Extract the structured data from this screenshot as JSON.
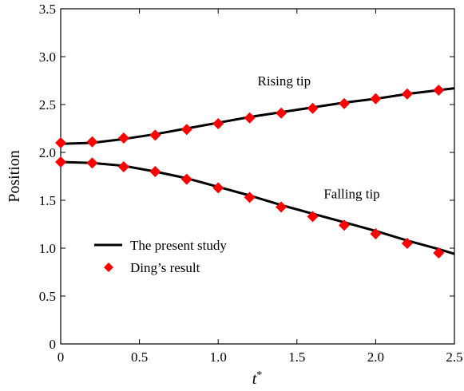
{
  "chart_data": {
    "type": "line",
    "xlabel": "t*",
    "ylabel": "Position",
    "xlim": [
      0,
      2.5
    ],
    "ylim": [
      0,
      3.5
    ],
    "xticks": [
      0,
      0.5,
      1.0,
      1.5,
      2.0,
      2.5
    ],
    "xtick_labels": [
      "0",
      "0.5",
      "1.0",
      "1.5",
      "2.0",
      "2.5"
    ],
    "yticks": [
      0,
      0.5,
      1.0,
      1.5,
      2.0,
      2.5,
      3.0,
      3.5
    ],
    "ytick_labels": [
      "0",
      "0.5",
      "1.0",
      "1.5",
      "2.0",
      "2.5",
      "3.0",
      "3.5"
    ],
    "grid": false,
    "legend_position": "lower-left",
    "legend": [
      {
        "label": "The present study",
        "marker": "line",
        "color": "#000000"
      },
      {
        "label": "Ding’s result",
        "marker": "diamond",
        "color": "#ff0000"
      }
    ],
    "annotations": [
      {
        "text": "Rising tip",
        "x": 1.25,
        "y": 2.7
      },
      {
        "text": "Falling tip",
        "x": 1.67,
        "y": 1.52
      }
    ],
    "series": [
      {
        "style": "line",
        "color": "#000000",
        "x": [
          0,
          0.2,
          0.4,
          0.6,
          0.8,
          1.0,
          1.2,
          1.4,
          1.6,
          1.8,
          2.0,
          2.2,
          2.4,
          2.5
        ],
        "y": [
          2.09,
          2.1,
          2.14,
          2.19,
          2.25,
          2.31,
          2.37,
          2.42,
          2.47,
          2.52,
          2.56,
          2.61,
          2.65,
          2.67
        ]
      },
      {
        "style": "line",
        "color": "#000000",
        "x": [
          0,
          0.2,
          0.4,
          0.6,
          0.8,
          1.0,
          1.2,
          1.4,
          1.6,
          1.8,
          2.0,
          2.2,
          2.4,
          2.5
        ],
        "y": [
          1.9,
          1.89,
          1.86,
          1.8,
          1.73,
          1.64,
          1.55,
          1.45,
          1.36,
          1.27,
          1.18,
          1.08,
          0.99,
          0.94
        ]
      },
      {
        "style": "marker",
        "color": "#ff0000",
        "x": [
          0,
          0.2,
          0.4,
          0.6,
          0.8,
          1.0,
          1.2,
          1.4,
          1.6,
          1.8,
          2.0,
          2.2,
          2.4
        ],
        "y": [
          2.1,
          2.11,
          2.15,
          2.18,
          2.24,
          2.3,
          2.36,
          2.41,
          2.46,
          2.51,
          2.56,
          2.61,
          2.65
        ]
      },
      {
        "style": "marker",
        "color": "#ff0000",
        "x": [
          0,
          0.2,
          0.4,
          0.6,
          0.8,
          1.0,
          1.2,
          1.4,
          1.6,
          1.8,
          2.0,
          2.2,
          2.4
        ],
        "y": [
          1.9,
          1.89,
          1.85,
          1.8,
          1.72,
          1.63,
          1.53,
          1.43,
          1.33,
          1.24,
          1.15,
          1.05,
          0.95
        ]
      }
    ]
  }
}
